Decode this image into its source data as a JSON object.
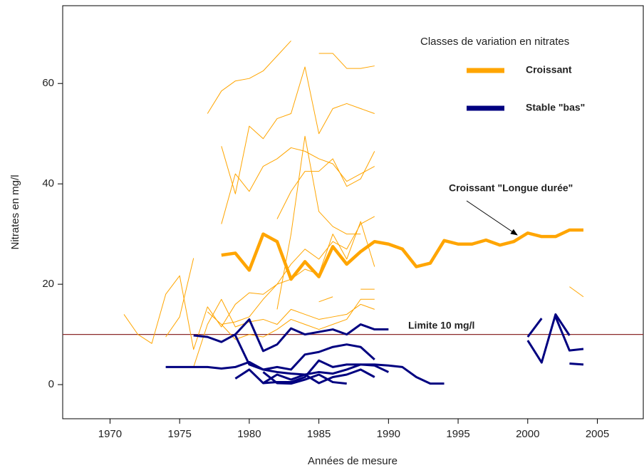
{
  "chart_data": {
    "type": "line",
    "xlabel": "Années de mesure",
    "ylabel": "Nitrates en mg/l",
    "xlim": [
      1966.6,
      2008.3
    ],
    "ylim": [
      -6.8,
      75.5
    ],
    "xticks": [
      1970,
      1975,
      1980,
      1985,
      1990,
      1995,
      2000,
      2005
    ],
    "yticks": [
      0,
      20,
      40,
      60
    ],
    "legend": {
      "title": "Classes de variation en nitrates",
      "items": [
        {
          "label": "Croissant",
          "color": "#ffa500",
          "width": 7
        },
        {
          "label": "Stable \"bas\"",
          "color": "#000080",
          "width": 7
        }
      ]
    },
    "hline": {
      "value": 10,
      "label": "Limite 10 mg/l",
      "color": "#8b2a2a"
    },
    "annotation": "Croissant \"Longue durée\"",
    "series": [
      {
        "color": "#ffa500",
        "width": 1,
        "x": [
          1971,
          1972,
          1973,
          1974,
          1975,
          1976,
          1977,
          1978,
          1979,
          1980,
          1981,
          1982,
          1983,
          1984,
          1985,
          1986,
          1987,
          1988,
          1989
        ],
        "values": [
          14,
          10,
          8.2,
          18,
          21.7,
          7,
          15.5,
          11.5,
          16,
          18.3,
          18,
          20,
          21,
          23,
          22,
          30,
          25,
          32.5,
          23.5
        ]
      },
      {
        "color": "#ffa500",
        "width": 1,
        "x": [
          1977,
          1978,
          1979,
          1980,
          1981,
          1982,
          1983
        ],
        "values": [
          54,
          58.5,
          60.5,
          61,
          62.5,
          65.5,
          68.5
        ]
      },
      {
        "color": "#ffa500",
        "width": 1,
        "x": [
          1978,
          1979,
          1980,
          1981,
          1982,
          1983,
          1984,
          1985,
          1986,
          1987,
          1988,
          1989
        ],
        "values": [
          47.5,
          38,
          51.5,
          49,
          53,
          54,
          63.3,
          50,
          55,
          56,
          55,
          54
        ]
      },
      {
        "color": "#ffa500",
        "width": 1,
        "x": [
          1978,
          1979,
          1980,
          1981,
          1982,
          1983,
          1984,
          1985,
          1986,
          1987,
          1988,
          1989
        ],
        "values": [
          32,
          42,
          38.5,
          43.5,
          45,
          47.2,
          46.5,
          45,
          44,
          40.5,
          42,
          43.5
        ]
      },
      {
        "color": "#ffa500",
        "width": 1,
        "x": [
          1982,
          1983,
          1984,
          1985,
          1986,
          1987,
          1988,
          1989
        ],
        "values": [
          33,
          38.5,
          42.5,
          42.5,
          45,
          39.5,
          41,
          46.5
        ]
      },
      {
        "color": "#ffa500",
        "width": 1,
        "x": [
          1982,
          1983,
          1984,
          1985,
          1986,
          1987,
          1988
        ],
        "values": [
          15,
          30,
          49.5,
          34.5,
          31.5,
          30,
          30
        ]
      },
      {
        "color": "#ffa500",
        "width": 1,
        "x": [
          1985,
          1986,
          1987,
          1988,
          1989
        ],
        "values": [
          66,
          66,
          63,
          63,
          63.5
        ]
      },
      {
        "color": "#ffa500",
        "width": 1,
        "x": [
          1974,
          1975,
          1976
        ],
        "values": [
          9.5,
          13.5,
          25.2
        ]
      },
      {
        "color": "#ffa500",
        "width": 1,
        "x": [
          1976,
          1977,
          1978,
          1979,
          1980,
          1981,
          1982,
          1983,
          1984,
          1985,
          1986,
          1987,
          1988,
          1989
        ],
        "values": [
          3.5,
          12,
          17,
          11.5,
          12.5,
          13,
          12,
          15,
          14,
          13,
          13.5,
          14,
          16,
          15
        ]
      },
      {
        "color": "#ffa500",
        "width": 1,
        "x": [
          1977,
          1978,
          1979,
          1980,
          1981,
          1982,
          1983,
          1984,
          1985,
          1986,
          1987,
          1988,
          1989
        ],
        "values": [
          14.5,
          12,
          12.5,
          13.5,
          17,
          20,
          24,
          27,
          25,
          28.5,
          27,
          32,
          33.5
        ]
      },
      {
        "color": "#ffa500",
        "width": 1,
        "x": [
          1985,
          1986,
          1987,
          1988,
          1989
        ],
        "values": [
          16.5,
          17.5,
          null,
          19,
          19
        ]
      },
      {
        "color": "#ffa500",
        "width": 1,
        "x": [
          1978,
          1979,
          1980,
          1981,
          1982,
          1983,
          1984,
          1985,
          1986,
          1987,
          1988,
          1989
        ],
        "values": [
          12,
          9,
          10,
          9.5,
          11,
          13,
          12,
          11,
          12,
          13,
          17,
          17
        ]
      },
      {
        "color": "#ffa500",
        "width": 1,
        "x": [
          2003,
          2004
        ],
        "values": [
          19.5,
          17.5
        ]
      },
      {
        "color": "#ffa500",
        "width": 4.5,
        "x": [
          1978,
          1979,
          1980,
          1981,
          1982,
          1983,
          1984,
          1985,
          1986,
          1987,
          1988,
          1989,
          1990,
          1991,
          1992,
          1993,
          1994,
          1995,
          1996,
          1997,
          1998,
          1999,
          2000,
          2001,
          2002,
          2003,
          2004
        ],
        "values": [
          25.8,
          26.2,
          22.8,
          30,
          28.5,
          21,
          24.5,
          21.5,
          27.5,
          24,
          26.5,
          28.5,
          28,
          27,
          23.5,
          24.2,
          28.7,
          28,
          28,
          28.8,
          27.8,
          28.5,
          30.2,
          29.5,
          29.5,
          30.8,
          30.8
        ]
      },
      {
        "color": "#000080",
        "width": 3,
        "x": [
          1976,
          1977,
          1978,
          1979,
          1980,
          1981,
          1982,
          1983,
          1984,
          1985,
          1986,
          1987,
          1988,
          1989,
          1990
        ],
        "values": [
          9.8,
          9.5,
          8.5,
          10,
          13,
          6.7,
          8,
          11.2,
          10,
          10.5,
          11,
          10,
          12,
          11,
          11
        ]
      },
      {
        "color": "#000080",
        "width": 3,
        "x": [
          1974,
          1975,
          1976,
          1977,
          1978,
          1979,
          1980,
          1981,
          1982,
          1983,
          1984,
          1985,
          1986,
          1987,
          1988,
          1989,
          1990,
          1991,
          1992,
          1993,
          1994
        ],
        "values": [
          3.5,
          3.5,
          3.5,
          3.5,
          3.2,
          3.5,
          4.5,
          3,
          2.5,
          2.2,
          2,
          2.5,
          2.2,
          3,
          4,
          4,
          3.8,
          3.5,
          1.5,
          0.2,
          0.2
        ]
      },
      {
        "color": "#000080",
        "width": 3,
        "x": [
          1979,
          1980,
          1981,
          1982,
          1983,
          1984,
          1985,
          1986,
          1987,
          1988,
          1989
        ],
        "values": [
          9.8,
          4,
          3,
          3.5,
          3,
          6,
          6.5,
          7.5,
          8,
          7.5,
          5
        ]
      },
      {
        "color": "#000080",
        "width": 3,
        "x": [
          1979,
          1980,
          1981,
          1982,
          1983,
          1984,
          1985,
          1986,
          1987,
          1988,
          1989,
          1990
        ],
        "values": [
          1.2,
          3,
          0.3,
          0.5,
          0.5,
          1.5,
          4.8,
          3.5,
          4,
          4,
          3.8,
          2.5
        ]
      },
      {
        "color": "#000080",
        "width": 3,
        "x": [
          1981,
          1982,
          1983,
          1984,
          1985,
          1986,
          1987,
          1988,
          1989
        ],
        "values": [
          0.3,
          2,
          1,
          2,
          0.3,
          1.5,
          2,
          3,
          1.5
        ]
      },
      {
        "color": "#000080",
        "width": 3,
        "x": [
          1981,
          1982,
          1983,
          1984,
          1985,
          1986,
          1987
        ],
        "values": [
          2.5,
          0.3,
          0.2,
          1,
          2,
          0.5,
          0.2
        ]
      },
      {
        "color": "#000080",
        "width": 3,
        "x": [
          2000,
          2001,
          2002,
          2003
        ],
        "values": [
          8.8,
          4.4,
          14,
          9.8
        ]
      },
      {
        "color": "#000080",
        "width": 3,
        "x": [
          2000,
          2001
        ],
        "values": [
          9.5,
          13.2
        ]
      },
      {
        "color": "#000080",
        "width": 3,
        "x": [
          2002,
          2003,
          2004
        ],
        "values": [
          13.5,
          6.8,
          7.1
        ]
      },
      {
        "color": "#000080",
        "width": 3,
        "x": [
          2003,
          2004
        ],
        "values": [
          4.2,
          4
        ]
      }
    ]
  }
}
